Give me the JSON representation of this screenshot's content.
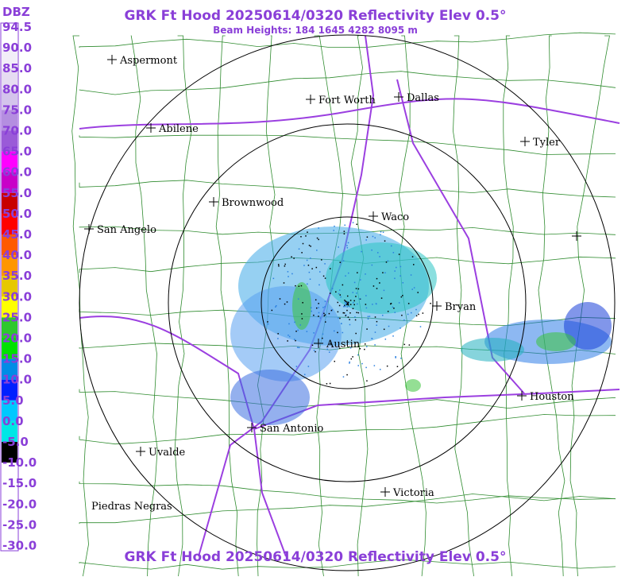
{
  "header": {
    "title": "GRK Ft Hood 20250614/0320 Reflectivity Elev 0.5°",
    "beam_heights": "Beam Heights: 184 1645 4282 8095 m"
  },
  "legend": {
    "unit": "DBZ",
    "labels": [
      "94.5",
      "90.0",
      "85.0",
      "80.0",
      "75.0",
      "70.0",
      "65.0",
      "60.0",
      "55.0",
      "50.0",
      "45.0",
      "40.0",
      "35.0",
      "30.0",
      "25.0",
      "20.0",
      "15.0",
      "10.0",
      "5.0",
      "0.0",
      "-5.0",
      "-10.0",
      "-15.0",
      "-20.0",
      "-25.0",
      "-30.0"
    ]
  },
  "cities": [
    {
      "name": "Aspermont"
    },
    {
      "name": "Fort Worth"
    },
    {
      "name": "Dallas"
    },
    {
      "name": "Abilene"
    },
    {
      "name": "Tyler"
    },
    {
      "name": "Brownwood"
    },
    {
      "name": "Waco"
    },
    {
      "name": "San Angelo"
    },
    {
      "name": "Bryan"
    },
    {
      "name": "Austin"
    },
    {
      "name": "Houston"
    },
    {
      "name": "San Antonio"
    },
    {
      "name": "Uvalde"
    },
    {
      "name": "Victoria"
    },
    {
      "name": "Piedras Negras"
    }
  ]
}
